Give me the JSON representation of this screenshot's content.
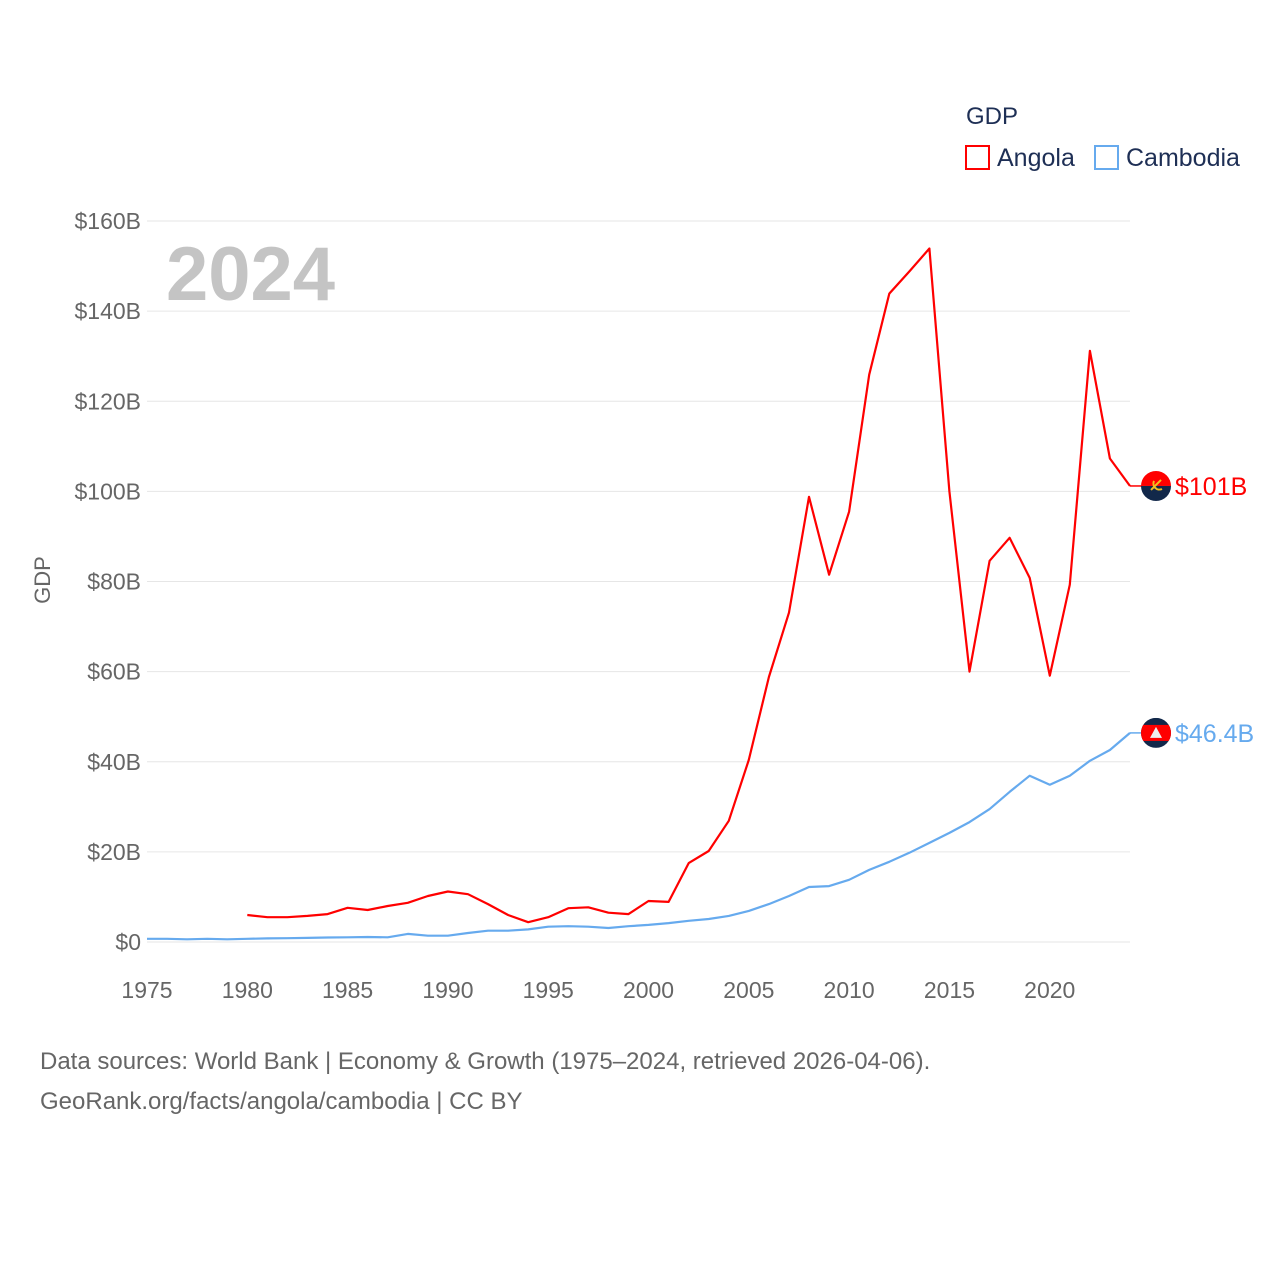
{
  "chart_data": {
    "type": "line",
    "title": "",
    "year_label": "2024",
    "xlabel": "",
    "ylabel": "GDP",
    "xlim": [
      1975,
      2024
    ],
    "ylim": [
      0,
      160
    ],
    "x_ticks": [
      1975,
      1980,
      1985,
      1990,
      1995,
      2000,
      2005,
      2010,
      2015,
      2020
    ],
    "y_ticks": [
      0,
      20,
      40,
      60,
      80,
      100,
      120,
      140,
      160
    ],
    "y_tick_labels": [
      "$0",
      "$20B",
      "$40B",
      "$60B",
      "$80B",
      "$100B",
      "$120B",
      "$140B",
      "$160B"
    ],
    "grid": true,
    "legend": {
      "title": "GDP",
      "placement": "top-right"
    },
    "series": [
      {
        "name": "Angola",
        "color": "#ff0000",
        "end_label": "$101B",
        "flag_icon": "angola-flag-icon",
        "x": [
          1980,
          1981,
          1982,
          1983,
          1984,
          1985,
          1986,
          1987,
          1988,
          1989,
          1990,
          1991,
          1992,
          1993,
          1994,
          1995,
          1996,
          1997,
          1998,
          1999,
          2000,
          2001,
          2002,
          2003,
          2004,
          2005,
          2006,
          2007,
          2008,
          2009,
          2010,
          2011,
          2012,
          2013,
          2014,
          2015,
          2016,
          2017,
          2018,
          2019,
          2020,
          2021,
          2022,
          2023,
          2024
        ],
        "values": [
          6.0,
          5.5,
          5.5,
          5.8,
          6.2,
          7.6,
          7.1,
          8.0,
          8.7,
          10.2,
          11.2,
          10.6,
          8.4,
          6.0,
          4.4,
          5.5,
          7.5,
          7.7,
          6.5,
          6.2,
          9.1,
          8.9,
          17.5,
          20.2,
          26.9,
          40.4,
          58.8,
          73.1,
          98.8,
          81.5,
          95.5,
          125.9,
          143.9,
          148.8,
          153.9,
          100.0,
          60.0,
          84.6,
          89.7,
          80.8,
          59.1,
          79.3,
          131.2,
          107.3,
          101.2
        ]
      },
      {
        "name": "Cambodia",
        "color": "#66aaee",
        "end_label": "$46.4B",
        "flag_icon": "cambodia-flag-icon",
        "x": [
          1975,
          1976,
          1977,
          1978,
          1979,
          1980,
          1981,
          1982,
          1983,
          1984,
          1985,
          1986,
          1987,
          1988,
          1989,
          1990,
          1991,
          1992,
          1993,
          1994,
          1995,
          1996,
          1997,
          1998,
          1999,
          2000,
          2001,
          2002,
          2003,
          2004,
          2005,
          2006,
          2007,
          2008,
          2009,
          2010,
          2011,
          2012,
          2013,
          2014,
          2015,
          2016,
          2017,
          2018,
          2019,
          2020,
          2021,
          2022,
          2023,
          2024
        ],
        "values": [
          0.7,
          0.7,
          0.6,
          0.7,
          0.6,
          0.7,
          0.8,
          0.85,
          0.9,
          1.0,
          1.05,
          1.1,
          1.05,
          1.8,
          1.4,
          1.4,
          2.0,
          2.5,
          2.5,
          2.8,
          3.4,
          3.5,
          3.4,
          3.1,
          3.5,
          3.8,
          4.2,
          4.7,
          5.1,
          5.8,
          6.9,
          8.4,
          10.2,
          12.2,
          12.4,
          13.8,
          16.0,
          17.8,
          19.8,
          22.0,
          24.2,
          26.6,
          29.5,
          33.3,
          36.9,
          34.9,
          36.9,
          40.2,
          42.6,
          46.4
        ]
      }
    ]
  },
  "footer": {
    "line1": "Data sources: World Bank | Economy & Growth (1975–2024, retrieved 2026-04-06).",
    "line2": "GeoRank.org/facts/angola/cambodia | CC BY"
  }
}
